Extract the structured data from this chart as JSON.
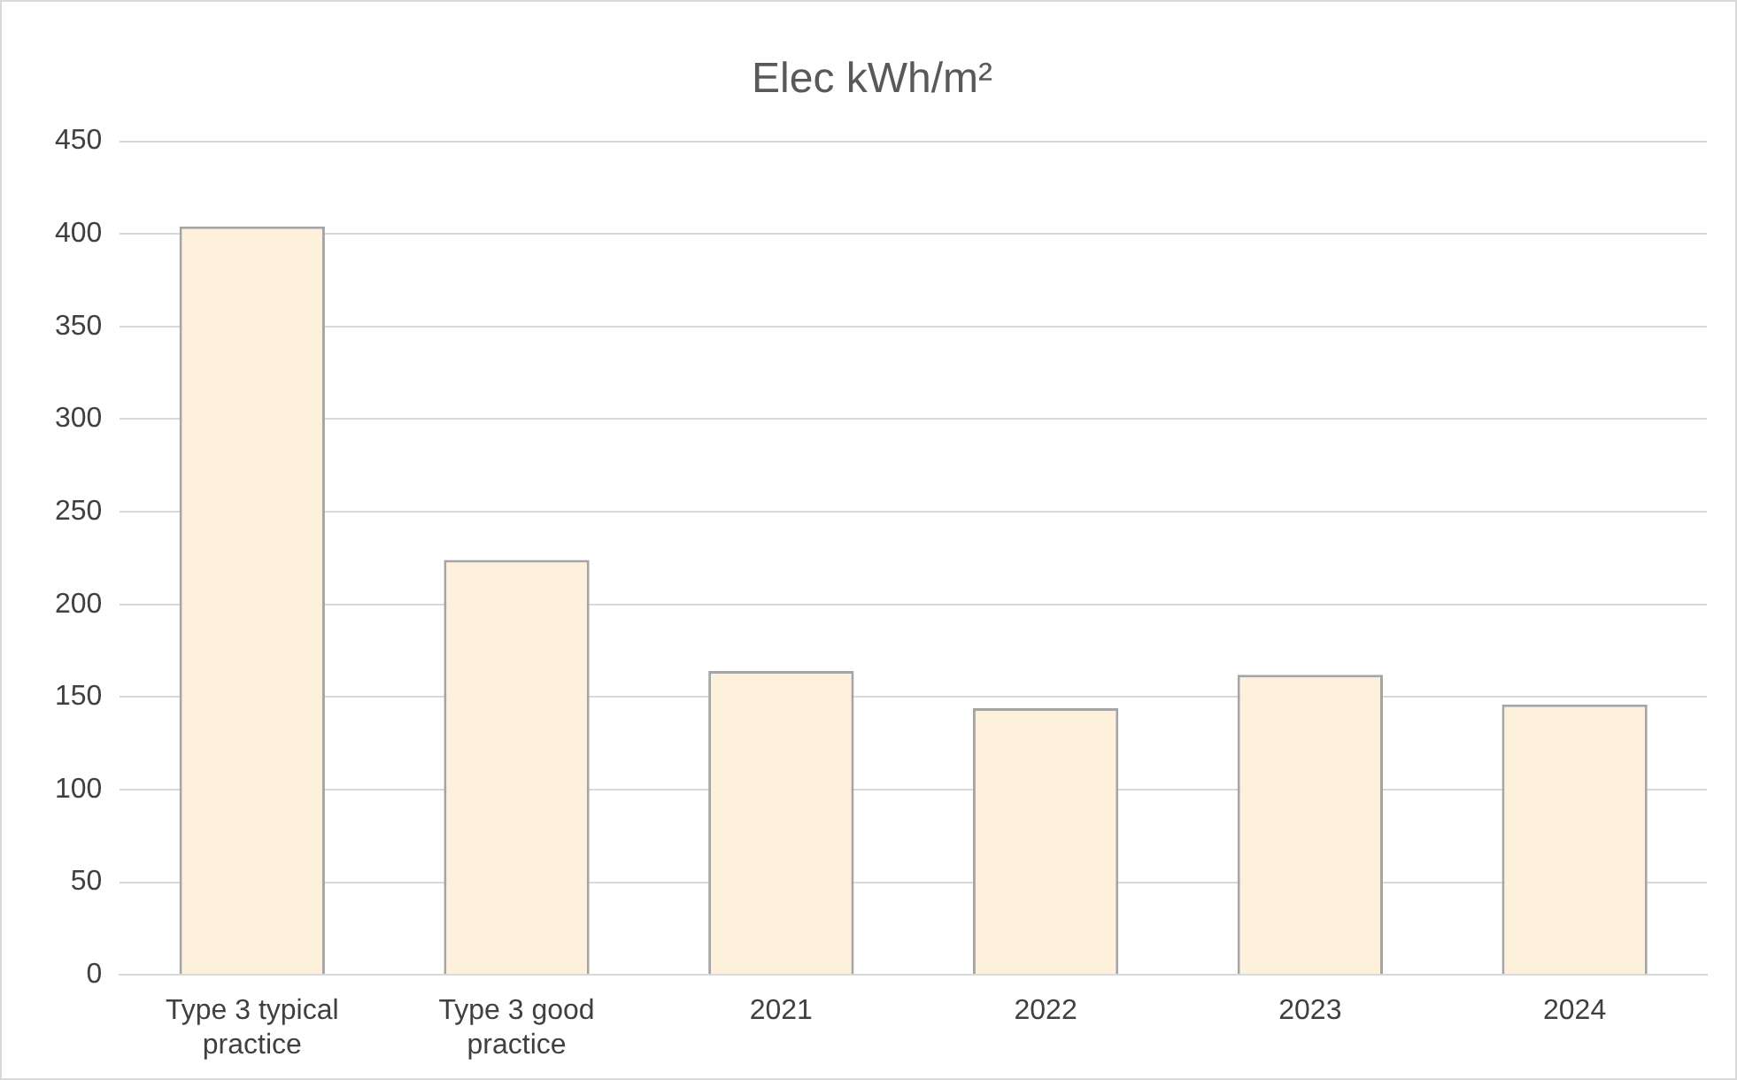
{
  "chart_data": {
    "type": "bar",
    "title": "Elec kWh/m²",
    "categories": [
      "Type 3 typical practice",
      "Type 3 good practice",
      "2021",
      "2022",
      "2023",
      "2024"
    ],
    "values": [
      404,
      224,
      164,
      144,
      162,
      146
    ],
    "color": "#fdf1dc",
    "ylim": [
      0,
      450
    ],
    "yticks": [
      0,
      50,
      100,
      150,
      200,
      250,
      300,
      350,
      400,
      450
    ],
    "grid": "y"
  }
}
